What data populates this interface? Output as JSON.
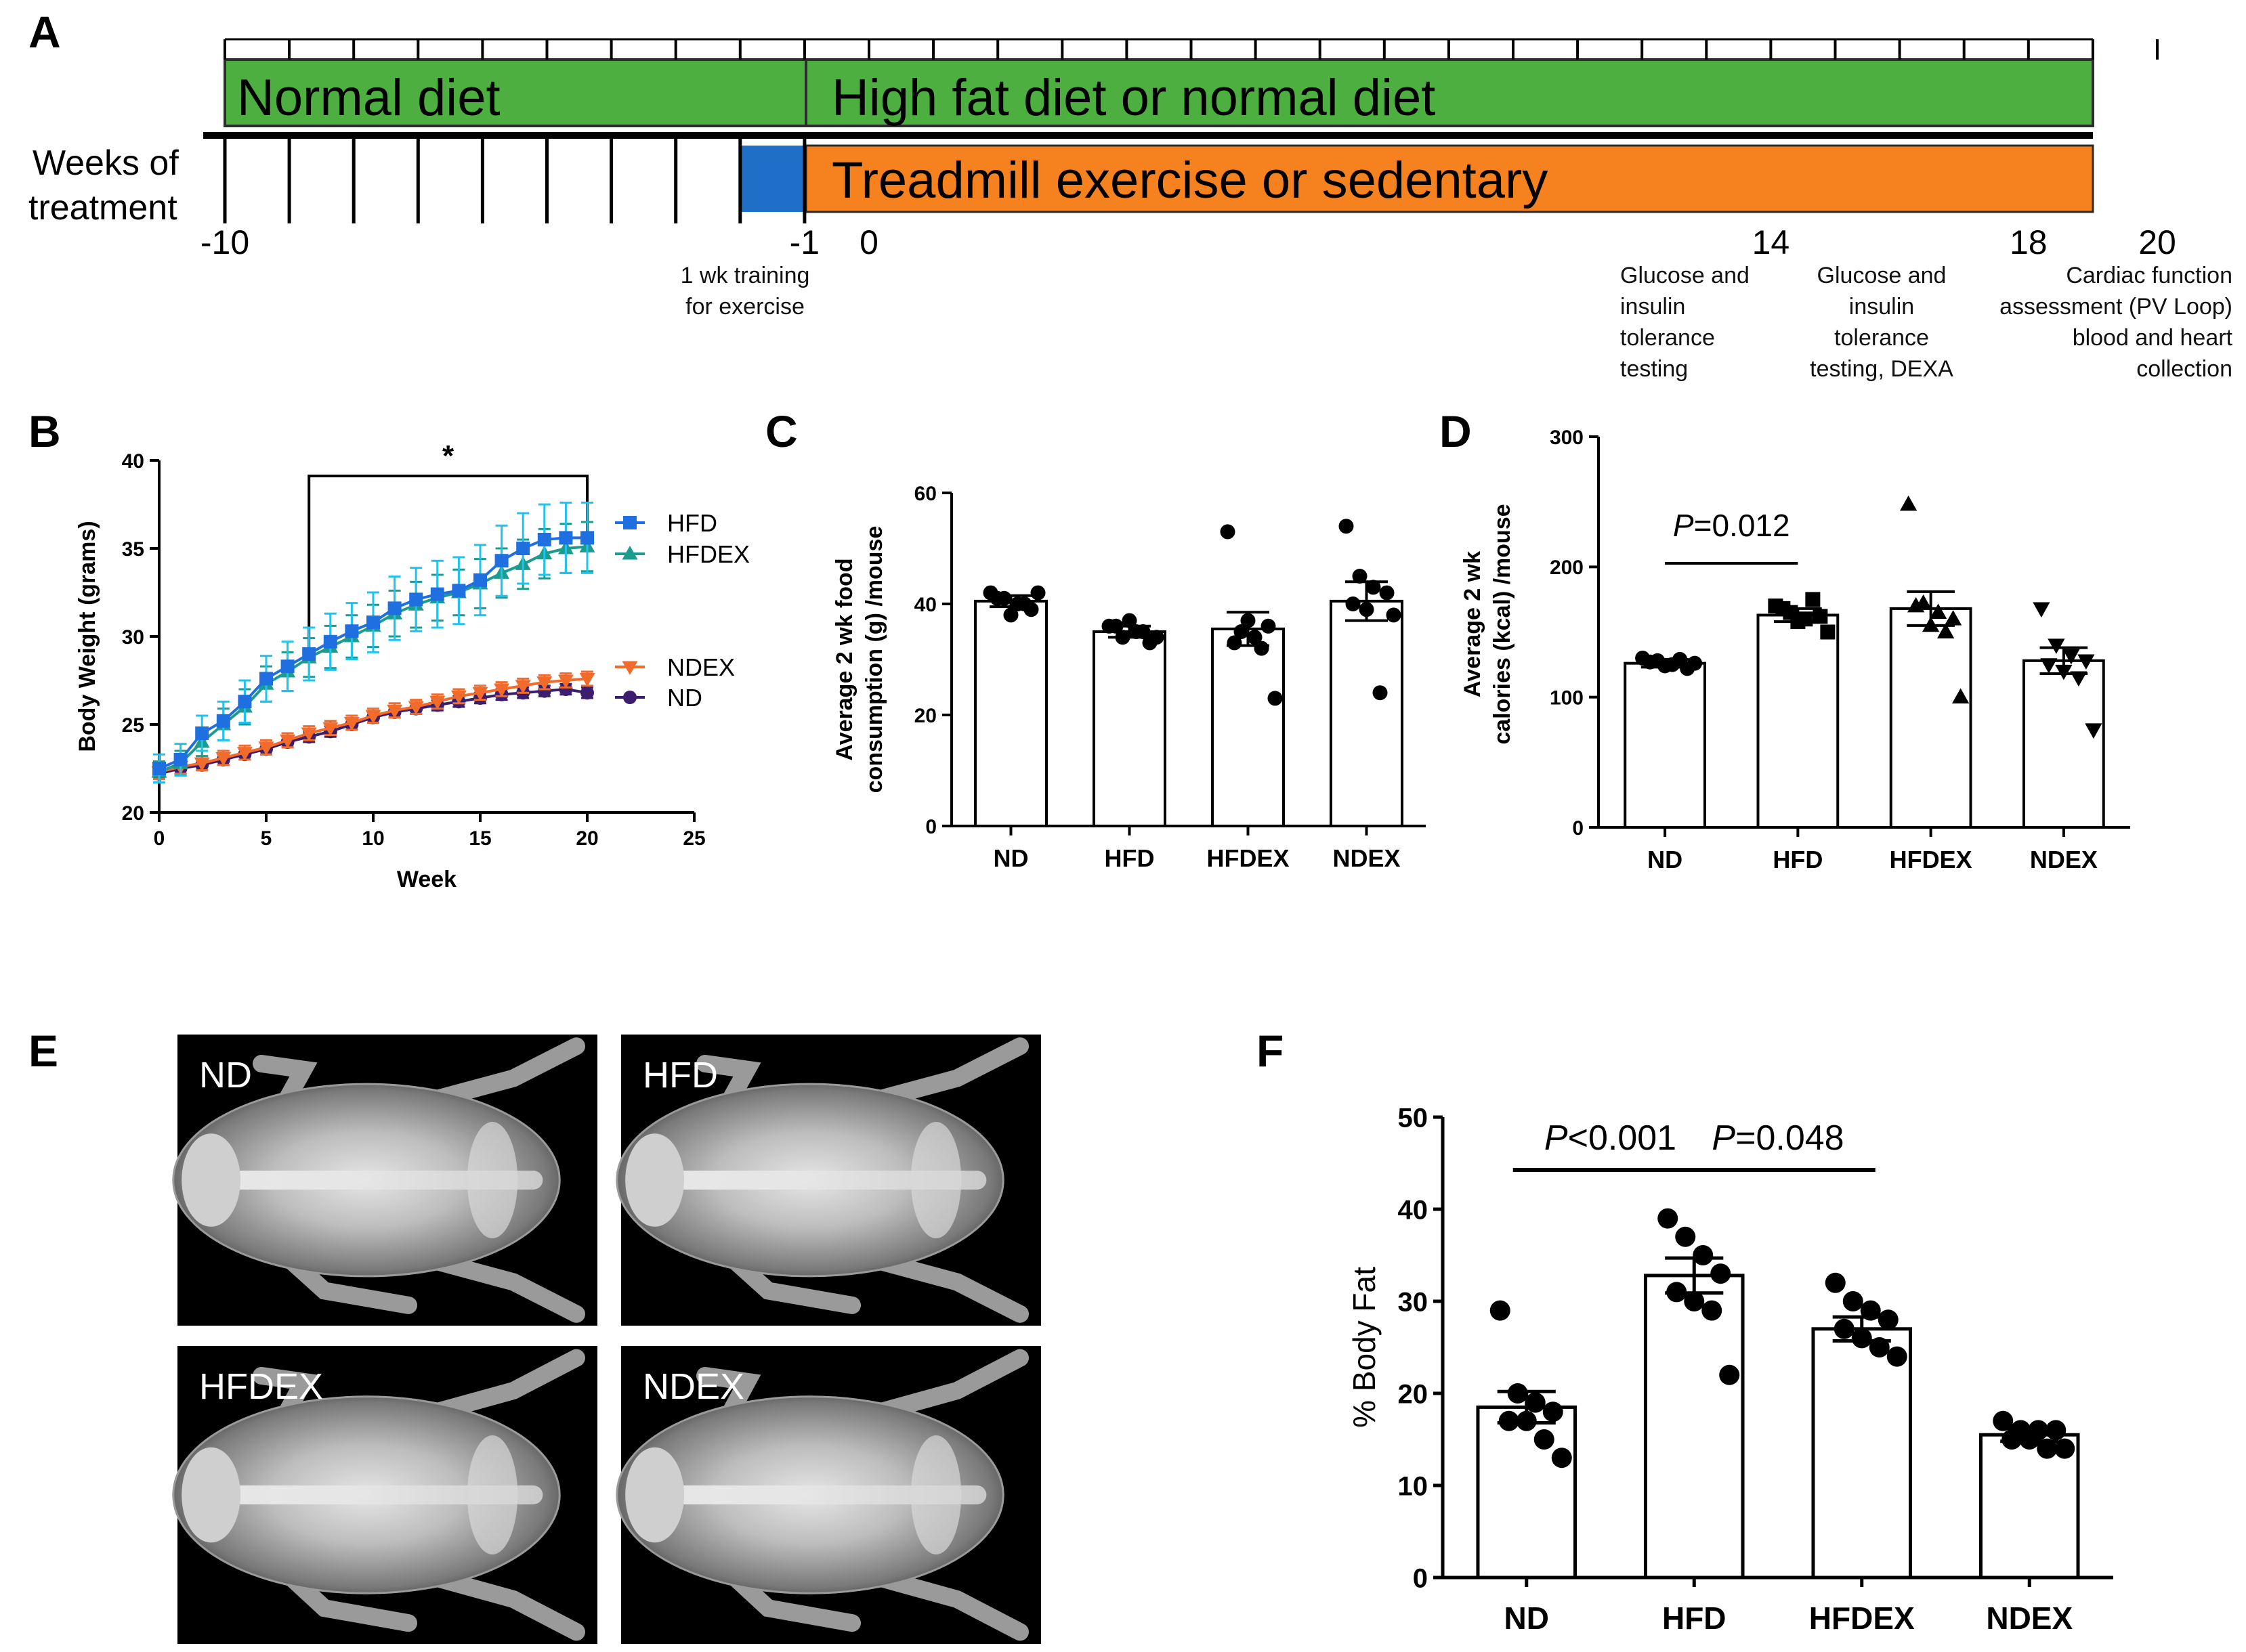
{
  "panel_a": {
    "letter": "A",
    "normal_diet_label": "Normal diet",
    "hfd_label": "High fat diet or normal diet",
    "treadmill_label": "Treadmill exercise or sedentary",
    "weeks_label_1": "Weeks of",
    "weeks_label_2": "treatment",
    "timeline": [
      {
        "week": -10,
        "label": "-10"
      },
      {
        "week": -1,
        "label": "-1"
      },
      {
        "week": 0,
        "label": "0"
      },
      {
        "week": 14,
        "label": "14"
      },
      {
        "week": 18,
        "label": "18"
      },
      {
        "week": 20,
        "label": "20"
      }
    ],
    "notes": [
      {
        "id": "training",
        "lines": [
          "1 wk training",
          "for exercise"
        ]
      },
      {
        "id": "w14",
        "lines": [
          "Glucose and",
          "insulin",
          "tolerance",
          "testing"
        ]
      },
      {
        "id": "w18",
        "lines": [
          "Glucose and",
          "insulin",
          "tolerance",
          "testing, DEXA"
        ]
      },
      {
        "id": "w20",
        "lines": [
          "Cardiac function",
          "assessment (PV Loop)",
          "blood and heart",
          "collection"
        ]
      }
    ],
    "colors": {
      "green": "#4caf3f",
      "orange": "#f5821f",
      "blue": "#1f6fc9"
    }
  },
  "panel_labels": {
    "b": "B",
    "c": "C",
    "d": "D",
    "e": "E",
    "f": "F"
  },
  "panel_e": {
    "images": [
      {
        "label": "ND"
      },
      {
        "label": "HFD"
      },
      {
        "label": "HFDEX"
      },
      {
        "label": "NDEX"
      }
    ]
  },
  "chart_data": [
    {
      "panel": "B",
      "type": "line",
      "xlabel": "Week",
      "ylabel": "Body Weight (grams)",
      "xlim": [
        0,
        25
      ],
      "ylim": [
        20,
        40
      ],
      "xticks": [
        0,
        5,
        10,
        15,
        20,
        25
      ],
      "yticks": [
        20,
        25,
        30,
        35,
        40
      ],
      "annotation": "*",
      "bracket_weeks": [
        7,
        20
      ],
      "x": [
        0,
        1,
        2,
        3,
        4,
        5,
        6,
        7,
        8,
        9,
        10,
        11,
        12,
        13,
        14,
        15,
        16,
        17,
        18,
        19,
        20
      ],
      "series": [
        {
          "name": "HFD",
          "color": "#1f6fe0",
          "errcolor": "#1fc3f0",
          "marker": "square",
          "values": [
            22.5,
            23.0,
            24.5,
            25.2,
            26.3,
            27.6,
            28.3,
            29.0,
            29.7,
            30.3,
            30.8,
            31.6,
            32.1,
            32.4,
            32.6,
            33.2,
            34.3,
            35.0,
            35.5,
            35.6,
            35.6
          ],
          "err": [
            0.8,
            0.9,
            1.0,
            1.1,
            1.2,
            1.3,
            1.4,
            1.5,
            1.6,
            1.6,
            1.7,
            1.8,
            1.8,
            1.9,
            1.9,
            2.0,
            2.0,
            2.0,
            2.0,
            2.0,
            2.0
          ]
        },
        {
          "name": "HFDEX",
          "color": "#1a9c8f",
          "marker": "triangle",
          "values": [
            22.3,
            22.8,
            24.0,
            25.0,
            26.0,
            27.3,
            28.0,
            28.8,
            29.4,
            30.0,
            30.6,
            31.3,
            31.8,
            32.2,
            32.5,
            33.0,
            33.6,
            34.1,
            34.7,
            35.0,
            35.1
          ],
          "err": [
            0.6,
            0.7,
            0.8,
            0.9,
            1.0,
            1.0,
            1.1,
            1.1,
            1.2,
            1.2,
            1.2,
            1.3,
            1.3,
            1.3,
            1.3,
            1.4,
            1.4,
            1.4,
            1.4,
            1.4,
            1.4
          ]
        },
        {
          "name": "NDEX",
          "color": "#f26b2b",
          "marker": "triangle-down",
          "values": [
            22.3,
            22.6,
            22.8,
            23.1,
            23.4,
            23.7,
            24.1,
            24.5,
            24.8,
            25.1,
            25.5,
            25.8,
            26.0,
            26.3,
            26.6,
            26.8,
            27.0,
            27.2,
            27.4,
            27.5,
            27.6
          ],
          "err": [
            0.4,
            0.4,
            0.4,
            0.4,
            0.4,
            0.4,
            0.4,
            0.4,
            0.4,
            0.4,
            0.4,
            0.4,
            0.4,
            0.4,
            0.4,
            0.4,
            0.4,
            0.4,
            0.4,
            0.4,
            0.4
          ]
        },
        {
          "name": "ND",
          "color": "#3b1f6e",
          "marker": "circle",
          "values": [
            22.2,
            22.5,
            22.7,
            23.0,
            23.3,
            23.6,
            24.0,
            24.3,
            24.6,
            25.0,
            25.4,
            25.7,
            25.9,
            26.1,
            26.3,
            26.5,
            26.7,
            26.8,
            26.9,
            27.0,
            26.8
          ],
          "err": [
            0.3,
            0.3,
            0.3,
            0.3,
            0.3,
            0.3,
            0.3,
            0.3,
            0.3,
            0.3,
            0.3,
            0.3,
            0.3,
            0.3,
            0.3,
            0.3,
            0.3,
            0.3,
            0.3,
            0.3,
            0.3
          ]
        }
      ]
    },
    {
      "panel": "C",
      "type": "bar",
      "ylabel_lines": [
        "Average 2 wk food",
        "consumption (g) /mouse"
      ],
      "ylim": [
        0,
        60
      ],
      "yticks": [
        0,
        20,
        40,
        60
      ],
      "categories": [
        "ND",
        "HFD",
        "HFDEX",
        "NDEX"
      ],
      "values": [
        40.5,
        35.0,
        35.5,
        40.5
      ],
      "sem": [
        1.0,
        1.0,
        3.0,
        3.5
      ],
      "points": [
        [
          42,
          41,
          40,
          39,
          41,
          38,
          40,
          42
        ],
        [
          36,
          34,
          35,
          33,
          36,
          37,
          35,
          34
        ],
        [
          53,
          35,
          34,
          36,
          33,
          37,
          32,
          23
        ],
        [
          54,
          45,
          43,
          42,
          40,
          39,
          24,
          38
        ]
      ],
      "marker": "circle"
    },
    {
      "panel": "D",
      "type": "bar",
      "ylabel_lines": [
        "Average 2 wk",
        "calories (kcal) /mouse"
      ],
      "ylim": [
        0,
        300
      ],
      "yticks": [
        0,
        100,
        200,
        300
      ],
      "categories": [
        "ND",
        "HFD",
        "HFDEX",
        "NDEX"
      ],
      "values": [
        126,
        163,
        168,
        128
      ],
      "sem": [
        3,
        5,
        13,
        10
      ],
      "annotations": [
        {
          "text_italic": "P",
          "text": "=0.012",
          "between": [
            0,
            1
          ]
        }
      ],
      "points": [
        [
          130,
          128,
          125,
          122,
          127,
          124,
          129,
          126
        ],
        [
          170,
          165,
          160,
          162,
          168,
          158,
          175,
          150
        ],
        [
          248,
          172,
          165,
          160,
          170,
          155,
          150,
          100
        ],
        [
          168,
          140,
          132,
          128,
          125,
          120,
          115,
          75
        ]
      ],
      "markers": [
        "circle",
        "square",
        "triangle",
        "triangle-down"
      ]
    },
    {
      "panel": "F",
      "type": "bar",
      "ylabel": "% Body Fat",
      "ylim": [
        0,
        50
      ],
      "yticks": [
        0,
        10,
        20,
        30,
        40,
        50
      ],
      "categories": [
        "ND",
        "HFD",
        "HFDEX",
        "NDEX"
      ],
      "values": [
        18.5,
        32.8,
        27.0,
        15.5
      ],
      "sem": [
        1.7,
        1.9,
        1.3,
        0.7
      ],
      "annotations": [
        {
          "text_italic": "P",
          "text": "<0.001",
          "between": [
            0,
            1
          ]
        },
        {
          "text_italic": "P",
          "text": "=0.048",
          "between": [
            1,
            2
          ]
        }
      ],
      "points": [
        [
          29,
          20,
          19,
          18,
          17,
          17,
          15,
          13
        ],
        [
          39,
          37,
          35,
          33,
          31,
          30,
          29,
          22
        ],
        [
          32,
          30,
          29,
          28,
          27,
          26,
          25,
          24
        ],
        [
          17,
          16,
          16,
          16,
          15,
          15,
          14,
          14
        ]
      ],
      "marker": "circle"
    }
  ]
}
